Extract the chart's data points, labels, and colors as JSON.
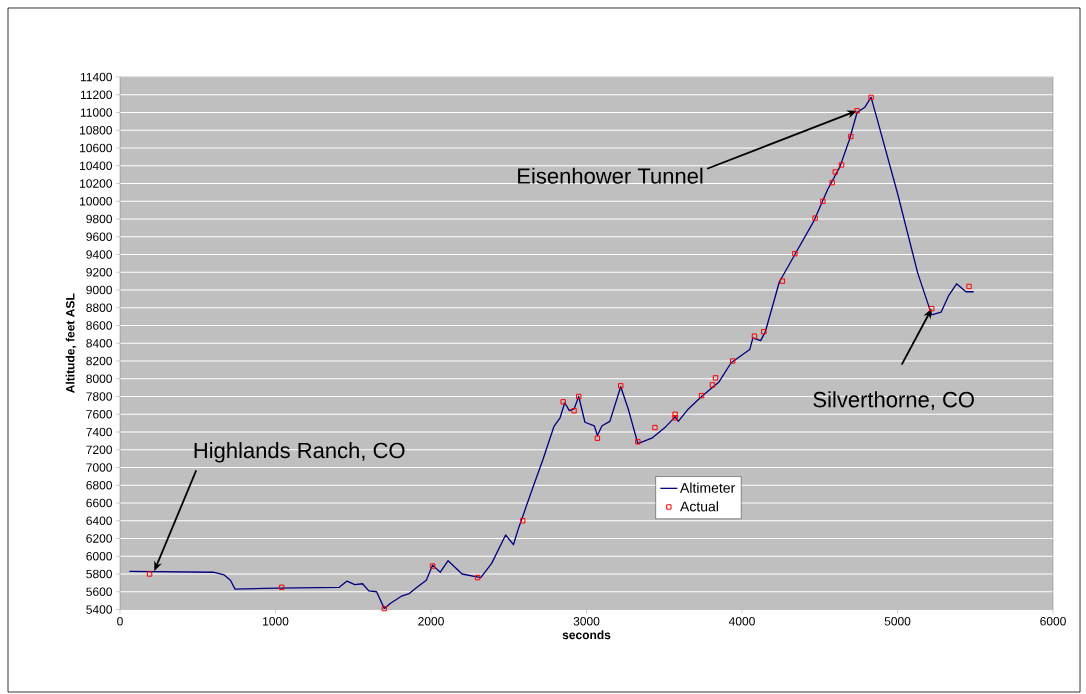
{
  "chart_data": {
    "type": "line",
    "xlabel": "seconds",
    "ylabel": "Altitude, feet ASL",
    "xlim": [
      0,
      6000
    ],
    "xticks": [
      0,
      1000,
      2000,
      3000,
      4000,
      5000,
      6000
    ],
    "ylim": [
      5400,
      11400
    ],
    "yticks": [
      5400,
      5600,
      5800,
      6000,
      6200,
      6400,
      6600,
      6800,
      7000,
      7200,
      7400,
      7600,
      7800,
      8000,
      8200,
      8400,
      8600,
      8800,
      9000,
      9200,
      9400,
      9600,
      9800,
      10000,
      10200,
      10400,
      10600,
      10800,
      11000,
      11200,
      11400
    ],
    "grid": "y",
    "legend": "bottom",
    "series": [
      {
        "name": "Altimeter",
        "type": "line",
        "color": "#000080",
        "marker": "none",
        "x": [
          60,
          600,
          670,
          710,
          740,
          1010,
          1410,
          1460,
          1510,
          1560,
          1600,
          1650,
          1700,
          1740,
          1810,
          1860,
          1910,
          1970,
          2010,
          2060,
          2110,
          2200,
          2320,
          2390,
          2480,
          2530,
          2560,
          2650,
          2720,
          2790,
          2830,
          2860,
          2890,
          2920,
          2950,
          2990,
          3050,
          3070,
          3100,
          3150,
          3220,
          3270,
          3330,
          3420,
          3510,
          3570,
          3590,
          3650,
          3740,
          3850,
          3930,
          4050,
          4070,
          4120,
          4150,
          4240,
          4340,
          4460,
          4550,
          4630,
          4690,
          4740,
          4790,
          4830,
          4870,
          5000,
          5130,
          5220,
          5280,
          5330,
          5380,
          5440,
          5490
        ],
        "values": [
          5830,
          5820,
          5790,
          5730,
          5630,
          5640,
          5650,
          5720,
          5680,
          5690,
          5610,
          5600,
          5410,
          5470,
          5550,
          5580,
          5650,
          5730,
          5900,
          5820,
          5950,
          5800,
          5760,
          5920,
          6240,
          6130,
          6300,
          6750,
          7090,
          7460,
          7560,
          7730,
          7640,
          7660,
          7800,
          7510,
          7470,
          7360,
          7470,
          7520,
          7910,
          7650,
          7270,
          7330,
          7460,
          7570,
          7520,
          7650,
          7800,
          7960,
          8180,
          8330,
          8460,
          8430,
          8530,
          9090,
          9400,
          9770,
          10130,
          10390,
          10690,
          11000,
          11060,
          11170,
          10920,
          10090,
          9190,
          8720,
          8750,
          8940,
          9070,
          8980,
          8980
        ]
      },
      {
        "name": "Actual",
        "type": "scatter",
        "color": "#ff0000",
        "marker": "square",
        "x": [
          190,
          1040,
          1700,
          2010,
          2300,
          2590,
          2850,
          2920,
          2950,
          3070,
          3220,
          3330,
          3440,
          3570,
          3570,
          3740,
          3810,
          3830,
          3940,
          4080,
          4140,
          4260,
          4340,
          4470,
          4520,
          4580,
          4600,
          4640,
          4700,
          4740,
          4830,
          5220,
          5460
        ],
        "values": [
          5800,
          5650,
          5410,
          5890,
          5760,
          6400,
          7740,
          7640,
          7800,
          7330,
          7920,
          7290,
          7450,
          7600,
          7560,
          7810,
          7930,
          8010,
          8200,
          8480,
          8530,
          9100,
          9410,
          9810,
          10000,
          10210,
          10330,
          10410,
          10730,
          11020,
          11170,
          8790,
          9040
        ]
      }
    ],
    "annotations": [
      {
        "text": "Highlands Ranch, CO",
        "x": 220,
        "y": 5830
      },
      {
        "text": "Eisenhower Tunnel",
        "x": 4740,
        "y": 11020
      },
      {
        "text": "Silverthorne, CO",
        "x": 5220,
        "y": 8790
      }
    ]
  }
}
